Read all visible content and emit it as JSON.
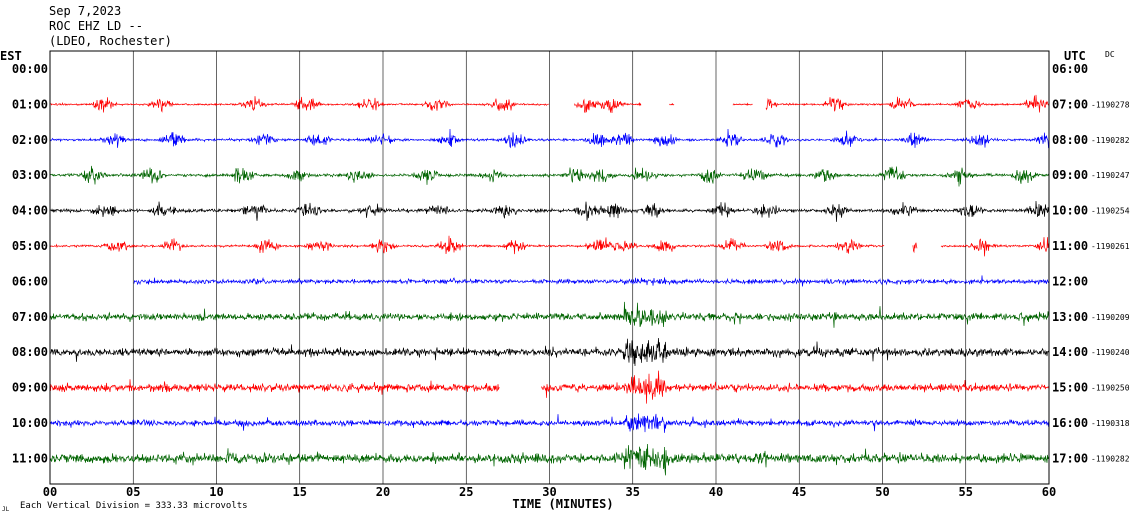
{
  "header": {
    "date": "Sep 7,2023",
    "station": "ROC EHZ LD --",
    "network": "(LDEO, Rochester)"
  },
  "labels": {
    "left_zone": "EST",
    "right_zone": "UTC",
    "dc": "DC",
    "scale_note": "Each Vertical Division =  333.33 microvolts",
    "corner_mark": "JL"
  },
  "chart_data": {
    "type": "helicorder",
    "xlabel": "TIME (MINUTES)",
    "xlim": [
      0,
      60
    ],
    "x_ticks": [
      "00",
      "05",
      "10",
      "15",
      "20",
      "25",
      "30",
      "35",
      "40",
      "45",
      "50",
      "55",
      "60"
    ],
    "grid": true,
    "vertical_division_microvolts": 333.33,
    "rows": [
      {
        "est": "00:00",
        "utc": "06:00",
        "dc": "",
        "color": "#ff0000",
        "empty": true
      },
      {
        "est": "01:00",
        "utc": "07:00",
        "dc": "-1190278",
        "color": "#ff0000",
        "base": 1.0,
        "dense": false,
        "gaps": [
          [
            30,
            31.5
          ],
          [
            35.5,
            37.2
          ],
          [
            37.5,
            41
          ],
          [
            42.2,
            43
          ]
        ]
      },
      {
        "est": "02:00",
        "utc": "08:00",
        "dc": "-1190282",
        "color": "#0000ff",
        "base": 1.3,
        "dense": false
      },
      {
        "est": "03:00",
        "utc": "09:00",
        "dc": "-1190247",
        "color": "#006400",
        "base": 1.6,
        "dense": false
      },
      {
        "est": "04:00",
        "utc": "10:00",
        "dc": "-1190254",
        "color": "#000000",
        "base": 1.8,
        "dense": false
      },
      {
        "est": "05:00",
        "utc": "11:00",
        "dc": "-1190261",
        "color": "#ff0000",
        "base": 1.2,
        "dense": false,
        "gaps": [
          [
            50.1,
            51.8
          ],
          [
            52.1,
            53.5
          ]
        ]
      },
      {
        "est": "06:00",
        "utc": "12:00",
        "dc": "",
        "color": "#0000ff",
        "base": 2.4,
        "dense": true,
        "start": 5
      },
      {
        "est": "07:00",
        "utc": "13:00",
        "dc": "-1190209",
        "color": "#006400",
        "base": 4.0,
        "dense": true
      },
      {
        "est": "08:00",
        "utc": "14:00",
        "dc": "-1190240",
        "color": "#000000",
        "base": 4.5,
        "dense": true
      },
      {
        "est": "09:00",
        "utc": "15:00",
        "dc": "-1190250",
        "color": "#ff0000",
        "base": 4.2,
        "dense": true,
        "gaps": [
          [
            27,
            29.5
          ]
        ]
      },
      {
        "est": "10:00",
        "utc": "16:00",
        "dc": "-1190318",
        "color": "#0000ff",
        "base": 3.2,
        "dense": true
      },
      {
        "est": "11:00",
        "utc": "17:00",
        "dc": "-1190282",
        "color": "#006400",
        "base": 5.0,
        "dense": true
      }
    ]
  }
}
